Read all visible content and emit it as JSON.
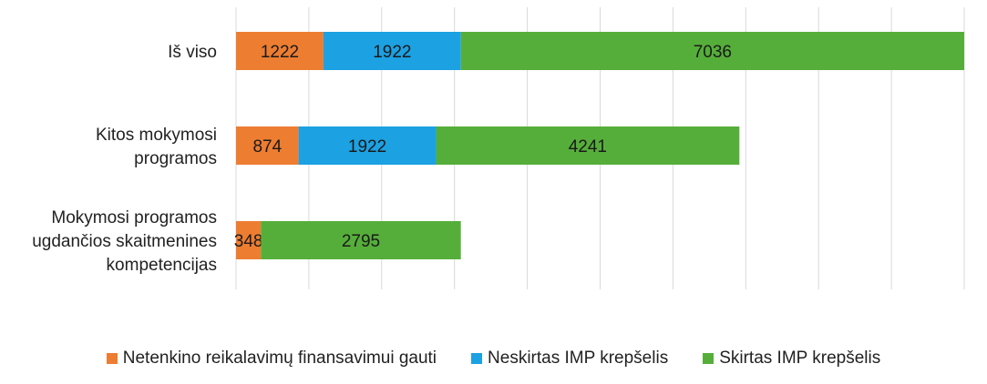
{
  "chart_data": {
    "type": "bar",
    "orientation": "horizontal",
    "stacked": true,
    "categories": [
      [
        "Iš viso"
      ],
      [
        "Kitos mokymosi",
        "programos"
      ],
      [
        "Mokymosi programos",
        "ugdančios skaitmenines",
        "kompetencijas"
      ]
    ],
    "series": [
      {
        "name": "Netenkino reikalavimų finansavimui gauti",
        "color": "#ED7D31",
        "values": [
          1222,
          874,
          348
        ]
      },
      {
        "name": "Neskirtas IMP krepšelis",
        "color": "#1CA1E2",
        "values": [
          1922,
          1922,
          0
        ]
      },
      {
        "name": "Skirtas IMP krepšelis",
        "color": "#56AE3A",
        "values": [
          7036,
          4241,
          2795
        ]
      }
    ],
    "xlim": [
      0,
      10180
    ],
    "grid": true,
    "legend_position": "bottom"
  }
}
